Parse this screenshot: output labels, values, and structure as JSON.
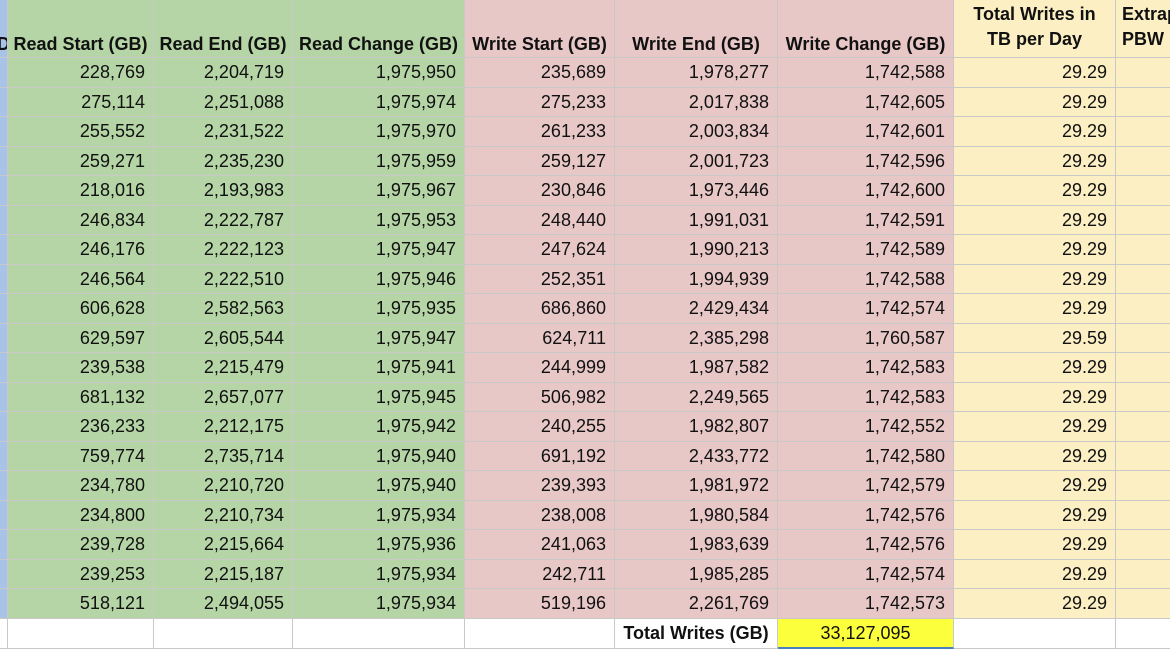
{
  "colors": {
    "blue": "#a7c3e6",
    "green": "#b5d5a6",
    "pink": "#e8c7c7",
    "yellow": "#fcefc4",
    "highlight": "#fcff3b"
  },
  "headers": {
    "col0": "D",
    "read_start": "Read Start (GB)",
    "read_end": "Read End (GB)",
    "read_change": "Read Change (GB)",
    "write_start": "Write Start (GB)",
    "write_end": "Write End (GB)",
    "write_change": "Write Change (GB)",
    "total_writes_line1": "Total Writes in",
    "total_writes_line2": "TB per Day",
    "extrap_line1": "Extrap",
    "extrap_line2": "PBW"
  },
  "rows": [
    [
      "228,769",
      "2,204,719",
      "1,975,950",
      "235,689",
      "1,978,277",
      "1,742,588",
      "29.29"
    ],
    [
      "275,114",
      "2,251,088",
      "1,975,974",
      "275,233",
      "2,017,838",
      "1,742,605",
      "29.29"
    ],
    [
      "255,552",
      "2,231,522",
      "1,975,970",
      "261,233",
      "2,003,834",
      "1,742,601",
      "29.29"
    ],
    [
      "259,271",
      "2,235,230",
      "1,975,959",
      "259,127",
      "2,001,723",
      "1,742,596",
      "29.29"
    ],
    [
      "218,016",
      "2,193,983",
      "1,975,967",
      "230,846",
      "1,973,446",
      "1,742,600",
      "29.29"
    ],
    [
      "246,834",
      "2,222,787",
      "1,975,953",
      "248,440",
      "1,991,031",
      "1,742,591",
      "29.29"
    ],
    [
      "246,176",
      "2,222,123",
      "1,975,947",
      "247,624",
      "1,990,213",
      "1,742,589",
      "29.29"
    ],
    [
      "246,564",
      "2,222,510",
      "1,975,946",
      "252,351",
      "1,994,939",
      "1,742,588",
      "29.29"
    ],
    [
      "606,628",
      "2,582,563",
      "1,975,935",
      "686,860",
      "2,429,434",
      "1,742,574",
      "29.29"
    ],
    [
      "629,597",
      "2,605,544",
      "1,975,947",
      "624,711",
      "2,385,298",
      "1,760,587",
      "29.59"
    ],
    [
      "239,538",
      "2,215,479",
      "1,975,941",
      "244,999",
      "1,987,582",
      "1,742,583",
      "29.29"
    ],
    [
      "681,132",
      "2,657,077",
      "1,975,945",
      "506,982",
      "2,249,565",
      "1,742,583",
      "29.29"
    ],
    [
      "236,233",
      "2,212,175",
      "1,975,942",
      "240,255",
      "1,982,807",
      "1,742,552",
      "29.29"
    ],
    [
      "759,774",
      "2,735,714",
      "1,975,940",
      "691,192",
      "2,433,772",
      "1,742,580",
      "29.29"
    ],
    [
      "234,780",
      "2,210,720",
      "1,975,940",
      "239,393",
      "1,981,972",
      "1,742,579",
      "29.29"
    ],
    [
      "234,800",
      "2,210,734",
      "1,975,934",
      "238,008",
      "1,980,584",
      "1,742,576",
      "29.29"
    ],
    [
      "239,728",
      "2,215,664",
      "1,975,936",
      "241,063",
      "1,983,639",
      "1,742,576",
      "29.29"
    ],
    [
      "239,253",
      "2,215,187",
      "1,975,934",
      "242,711",
      "1,985,285",
      "1,742,574",
      "29.29"
    ],
    [
      "518,121",
      "2,494,055",
      "1,975,934",
      "519,196",
      "2,261,769",
      "1,742,573",
      "29.29"
    ]
  ],
  "totals": {
    "label": "Total Writes (GB)",
    "value": "33,127,095"
  }
}
